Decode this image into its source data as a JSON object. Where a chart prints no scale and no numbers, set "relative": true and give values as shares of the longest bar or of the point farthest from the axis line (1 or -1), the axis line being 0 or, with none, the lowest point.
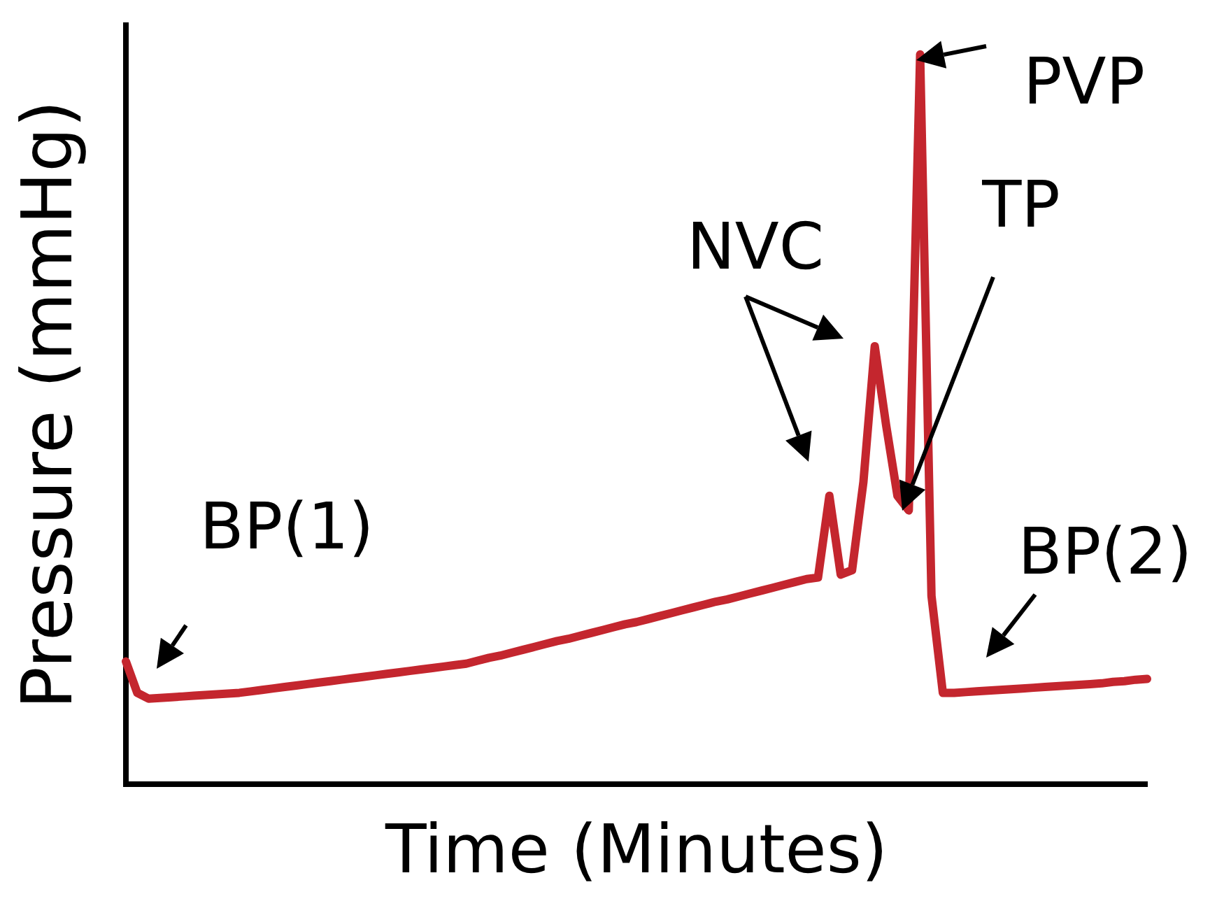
{
  "chart_data": {
    "type": "line",
    "xlabel": "Time (Minutes)",
    "ylabel": "Pressure (mmHg)",
    "relative": true,
    "grid": false,
    "legend": false,
    "tick_labels": false,
    "marker": "none",
    "line_style": "solid",
    "categories": [
      null,
      null,
      null,
      null,
      null,
      null,
      null,
      null,
      null,
      null,
      null,
      null,
      null,
      null,
      null,
      null,
      null,
      null,
      null,
      null,
      null,
      null,
      null,
      null,
      null,
      null,
      null,
      null,
      null,
      null,
      null,
      null,
      null,
      null,
      null,
      null,
      null,
      null,
      null,
      null,
      null,
      null,
      null,
      null,
      null,
      null,
      null,
      null,
      null,
      null,
      null,
      null,
      null,
      null,
      null,
      null,
      null,
      null,
      null,
      null,
      null,
      null,
      null,
      null,
      null,
      null,
      null,
      null,
      null,
      null,
      null,
      null,
      null,
      null,
      null,
      null,
      null,
      null,
      null,
      null,
      null,
      null,
      null,
      null,
      null,
      null,
      null,
      null,
      null,
      null,
      null
    ],
    "series": [
      {
        "color": "#c4262e",
        "values": [
          0.168,
          0.125,
          0.117,
          0.118,
          0.119,
          0.12,
          0.121,
          0.122,
          0.123,
          0.124,
          0.125,
          0.127,
          0.129,
          0.131,
          0.133,
          0.135,
          0.137,
          0.139,
          0.141,
          0.143,
          0.145,
          0.147,
          0.149,
          0.151,
          0.153,
          0.155,
          0.157,
          0.159,
          0.161,
          0.163,
          0.165,
          0.169,
          0.173,
          0.176,
          0.18,
          0.184,
          0.188,
          0.192,
          0.196,
          0.199,
          0.203,
          0.207,
          0.211,
          0.215,
          0.219,
          0.222,
          0.226,
          0.23,
          0.234,
          0.238,
          0.242,
          0.246,
          0.25,
          0.253,
          0.257,
          0.261,
          0.265,
          0.269,
          0.273,
          0.277,
          0.281,
          0.283,
          0.395,
          0.287,
          0.293,
          0.414,
          0.6,
          0.492,
          0.395,
          0.375,
          1.0,
          0.258,
          0.125,
          0.125,
          0.126,
          0.127,
          0.128,
          0.129,
          0.13,
          0.131,
          0.132,
          0.133,
          0.134,
          0.135,
          0.136,
          0.137,
          0.138,
          0.14,
          0.141,
          0.143,
          0.144
        ]
      }
    ],
    "annotations": [
      "BP(1)",
      "NVC",
      "TP",
      "PVP",
      "BP(2)"
    ]
  }
}
